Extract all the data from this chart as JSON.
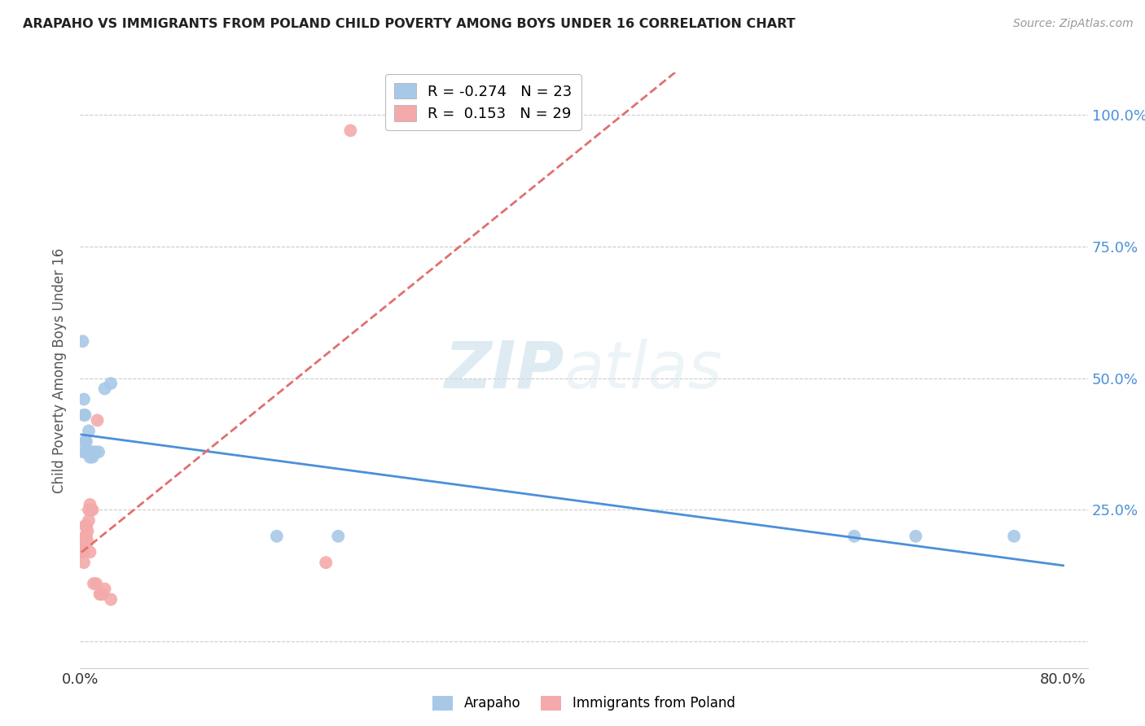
{
  "title": "ARAPAHO VS IMMIGRANTS FROM POLAND CHILD POVERTY AMONG BOYS UNDER 16 CORRELATION CHART",
  "source": "Source: ZipAtlas.com",
  "xlim": [
    0.0,
    0.82
  ],
  "ylim": [
    -0.05,
    1.08
  ],
  "arapaho_color": "#a8c8e8",
  "arapaho_line_color": "#4a90d9",
  "poland_color": "#f4aaaa",
  "poland_line_color": "#e07070",
  "arapaho_R": -0.274,
  "arapaho_N": 23,
  "poland_R": 0.153,
  "poland_N": 29,
  "ylabel": "Child Poverty Among Boys Under 16",
  "watermark_zip": "ZIP",
  "watermark_atlas": "atlas",
  "arapaho_x": [
    0.002,
    0.003,
    0.003,
    0.004,
    0.004,
    0.005,
    0.005,
    0.006,
    0.007,
    0.007,
    0.008,
    0.009,
    0.01,
    0.012,
    0.015,
    0.02,
    0.025,
    0.16,
    0.21,
    0.63,
    0.68,
    0.76,
    0.002
  ],
  "arapaho_y": [
    0.57,
    0.46,
    0.43,
    0.43,
    0.38,
    0.36,
    0.38,
    0.36,
    0.36,
    0.4,
    0.35,
    0.36,
    0.35,
    0.36,
    0.36,
    0.48,
    0.49,
    0.2,
    0.2,
    0.2,
    0.2,
    0.2,
    0.36
  ],
  "poland_x": [
    0.001,
    0.001,
    0.002,
    0.002,
    0.003,
    0.003,
    0.003,
    0.004,
    0.004,
    0.005,
    0.005,
    0.006,
    0.006,
    0.007,
    0.007,
    0.008,
    0.008,
    0.009,
    0.01,
    0.011,
    0.013,
    0.014,
    0.016,
    0.017,
    0.018,
    0.02,
    0.025,
    0.2,
    0.22
  ],
  "poland_y": [
    0.17,
    0.19,
    0.18,
    0.17,
    0.19,
    0.17,
    0.15,
    0.22,
    0.2,
    0.22,
    0.2,
    0.21,
    0.19,
    0.23,
    0.25,
    0.17,
    0.26,
    0.25,
    0.25,
    0.11,
    0.11,
    0.42,
    0.09,
    0.09,
    0.09,
    0.1,
    0.08,
    0.15,
    0.97
  ],
  "ytick_positions": [
    0.0,
    0.25,
    0.5,
    0.75,
    1.0
  ],
  "ytick_labels_right": [
    "",
    "25.0%",
    "50.0%",
    "75.0%",
    "100.0%"
  ],
  "xtick_positions": [
    0.0,
    0.8
  ],
  "xtick_labels": [
    "0.0%",
    "80.0%"
  ]
}
